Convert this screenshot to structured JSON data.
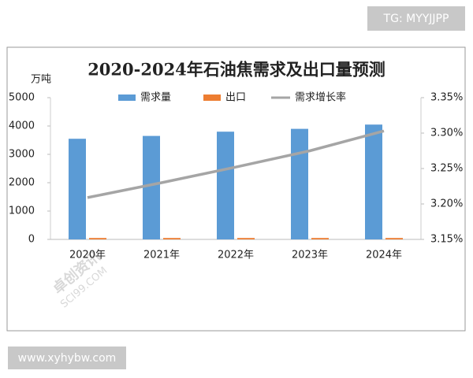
{
  "badge": "TG: MYYJJPP",
  "footer": "www.xyhybw.com",
  "watermark": [
    "卓创资讯",
    "SCI99.COM"
  ],
  "chart_data": {
    "type": "bar",
    "title": "2020-2024年石油焦需求及出口量预测",
    "y_label": "万吨",
    "categories": [
      "2020年",
      "2021年",
      "2022年",
      "2023年",
      "2024年"
    ],
    "series": [
      {
        "name": "需求量",
        "color": "#5b9bd5",
        "values": [
          3550,
          3650,
          3800,
          3900,
          4050
        ]
      },
      {
        "name": "出口",
        "color": "#ed7d31",
        "values": [
          50,
          50,
          50,
          50,
          50
        ]
      },
      {
        "name": "需求增长率",
        "color": "#a5a5a5",
        "type": "line",
        "axis": "y2",
        "values": [
          3.209,
          3.23,
          3.252,
          3.275,
          3.303
        ]
      }
    ],
    "ylim": [
      0,
      5000
    ],
    "yticks": [
      0,
      1000,
      2000,
      3000,
      4000,
      5000
    ],
    "y2lim": [
      3.15,
      3.35
    ],
    "y2ticks": [
      {
        "value": 3.15,
        "label": "3.15%"
      },
      {
        "value": 3.2,
        "label": "3.20%"
      },
      {
        "value": 3.25,
        "label": "3.25%"
      },
      {
        "value": 3.3,
        "label": "3.30%"
      },
      {
        "value": 3.35,
        "label": "3.35%"
      }
    ],
    "legend": "top",
    "grid": false
  }
}
